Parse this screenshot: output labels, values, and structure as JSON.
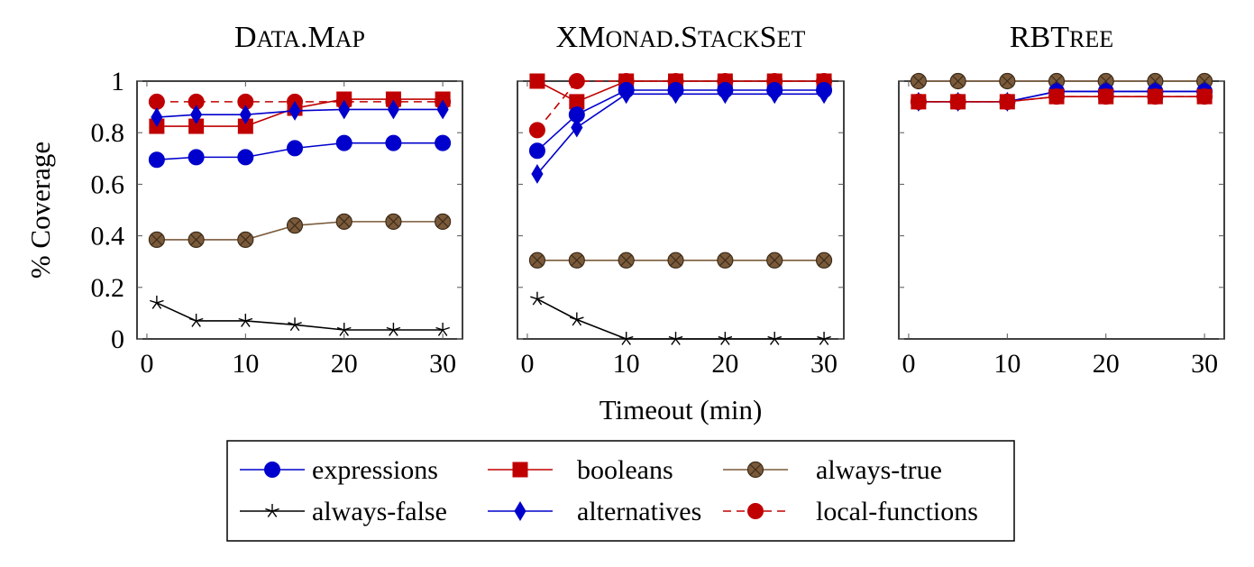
{
  "figure": {
    "ylabel": "% Coverage",
    "xlabel": "Timeout (min)"
  },
  "series_styles": [
    {
      "name": "expressions",
      "color": "#0000cc",
      "marker": "circle",
      "dash": false
    },
    {
      "name": "booleans",
      "color": "#c00000",
      "marker": "square",
      "dash": false
    },
    {
      "name": "always-true",
      "color": "#7a5a3a",
      "marker": "crossed-circle",
      "dash": false
    },
    {
      "name": "always-false",
      "color": "#000000",
      "marker": "star",
      "dash": false
    },
    {
      "name": "alternatives",
      "color": "#0000cc",
      "marker": "diamond",
      "dash": false
    },
    {
      "name": "local-functions",
      "color": "#c00000",
      "marker": "circle",
      "dash": true
    }
  ],
  "legend": {
    "placement": "bottom-center",
    "entries": [
      "expressions",
      "booleans",
      "always-true",
      "always-false",
      "alternatives",
      "local-functions"
    ]
  },
  "chart_data": [
    {
      "type": "line",
      "title_parts": [
        [
          "D",
          "big"
        ],
        [
          "ATA",
          "small"
        ],
        [
          ".M",
          "big"
        ],
        [
          "AP",
          "small"
        ]
      ],
      "title": "Data.Map",
      "x": [
        1,
        5,
        10,
        15,
        20,
        25,
        30
      ],
      "xticks": [
        "0",
        "10",
        "20",
        "30"
      ],
      "yticks": [
        "0",
        "0.2",
        "0.4",
        "0.6",
        "0.8",
        "1"
      ],
      "xlim": [
        -1,
        32
      ],
      "ylim": [
        0,
        1
      ],
      "series": [
        {
          "name": "local-functions",
          "values": [
            0.92,
            0.92,
            0.92,
            0.92,
            0.92,
            0.92,
            0.92
          ]
        },
        {
          "name": "booleans",
          "values": [
            0.825,
            0.825,
            0.825,
            0.895,
            0.93,
            0.93,
            0.93
          ]
        },
        {
          "name": "alternatives",
          "values": [
            0.86,
            0.87,
            0.87,
            0.885,
            0.89,
            0.89,
            0.89
          ]
        },
        {
          "name": "expressions",
          "values": [
            0.695,
            0.705,
            0.705,
            0.74,
            0.76,
            0.76,
            0.76
          ]
        },
        {
          "name": "always-true",
          "values": [
            0.385,
            0.385,
            0.385,
            0.44,
            0.455,
            0.455,
            0.455
          ]
        },
        {
          "name": "always-false",
          "values": [
            0.14,
            0.07,
            0.07,
            0.055,
            0.035,
            0.035,
            0.035
          ]
        }
      ]
    },
    {
      "type": "line",
      "title_parts": [
        [
          "XM",
          "big"
        ],
        [
          "ONAD",
          "small"
        ],
        [
          ".S",
          "big"
        ],
        [
          "TACK",
          "small"
        ],
        [
          "S",
          "big"
        ],
        [
          "ET",
          "small"
        ]
      ],
      "title": "XMonad.StackSet",
      "x": [
        1,
        5,
        10,
        15,
        20,
        25,
        30
      ],
      "xticks": [
        "0",
        "10",
        "20",
        "30"
      ],
      "yticks": [],
      "xlim": [
        -1,
        32
      ],
      "ylim": [
        0,
        1
      ],
      "series": [
        {
          "name": "local-functions",
          "values": [
            0.81,
            1.0,
            1.0,
            1.0,
            1.0,
            1.0,
            1.0
          ]
        },
        {
          "name": "booleans",
          "values": [
            1.0,
            0.92,
            1.0,
            1.0,
            1.0,
            1.0,
            1.0
          ]
        },
        {
          "name": "expressions",
          "values": [
            0.73,
            0.87,
            0.965,
            0.965,
            0.965,
            0.965,
            0.965
          ]
        },
        {
          "name": "alternatives",
          "values": [
            0.64,
            0.82,
            0.95,
            0.95,
            0.95,
            0.95,
            0.95
          ]
        },
        {
          "name": "always-true",
          "values": [
            0.305,
            0.305,
            0.305,
            0.305,
            0.305,
            0.305,
            0.305
          ]
        },
        {
          "name": "always-false",
          "values": [
            0.155,
            0.075,
            0.0,
            0.0,
            0.0,
            0.0,
            0.0
          ]
        }
      ]
    },
    {
      "type": "line",
      "title_parts": [
        [
          "RBT",
          "big"
        ],
        [
          "REE",
          "small"
        ]
      ],
      "title": "RBTree",
      "x": [
        1,
        5,
        10,
        15,
        20,
        25,
        30
      ],
      "xticks": [
        "0",
        "10",
        "20",
        "30"
      ],
      "yticks": [],
      "xlim": [
        -1,
        32
      ],
      "ylim": [
        0,
        1
      ],
      "series": [
        {
          "name": "always-true",
          "values": [
            1.0,
            1.0,
            1.0,
            1.0,
            1.0,
            1.0,
            1.0
          ]
        },
        {
          "name": "expressions",
          "values": [
            0.92,
            0.92,
            0.92,
            0.96,
            0.96,
            0.96,
            0.96
          ]
        },
        {
          "name": "alternatives",
          "values": [
            0.92,
            0.92,
            0.92,
            0.96,
            0.96,
            0.96,
            0.96
          ]
        },
        {
          "name": "booleans",
          "values": [
            0.92,
            0.92,
            0.92,
            0.94,
            0.94,
            0.94,
            0.94
          ]
        },
        {
          "name": "local-functions",
          "values": [
            0.92,
            0.92,
            0.92,
            0.94,
            0.94,
            0.94,
            0.94
          ]
        }
      ]
    }
  ]
}
